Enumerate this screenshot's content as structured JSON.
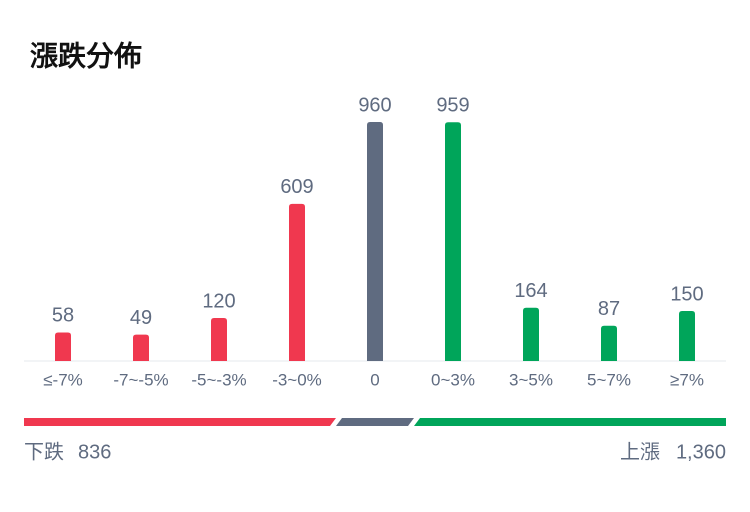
{
  "chart_data": {
    "type": "bar",
    "title": "漲跌分佈",
    "categories": [
      "≤-7%",
      "-7~-5%",
      "-5~-3%",
      "-3~0%",
      "0",
      "0~3%",
      "3~5%",
      "5~7%",
      "≥7%"
    ],
    "values": [
      58,
      49,
      120,
      609,
      960,
      959,
      164,
      87,
      150
    ],
    "colors": [
      "#f0384f",
      "#f0384f",
      "#f0384f",
      "#f0384f",
      "#5f6b80",
      "#00a55a",
      "#00a55a",
      "#00a55a",
      "#00a55a"
    ]
  },
  "summary": {
    "down": {
      "label": "下跌",
      "count": "836"
    },
    "up": {
      "label": "上漲",
      "count": "1,360"
    }
  }
}
